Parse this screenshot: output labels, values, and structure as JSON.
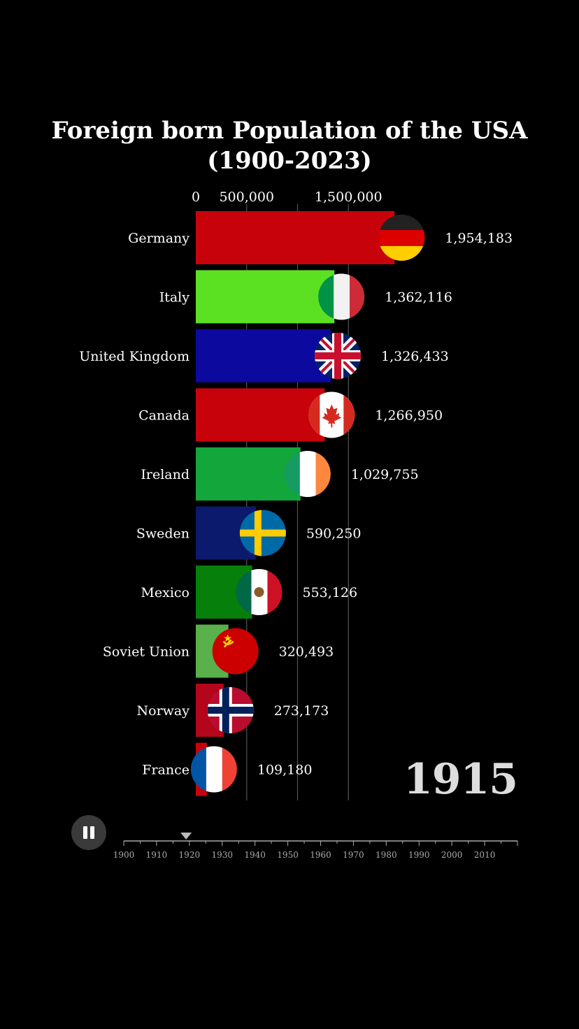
{
  "title_line1": "Foreign born Population of the USA",
  "title_line2": "(1900-2023)",
  "current_year": "1915",
  "controls": {
    "pause_icon": "pause-icon"
  },
  "timeline": {
    "labels": [
      "1900",
      "1910",
      "1920",
      "1930",
      "1940",
      "1950",
      "1960",
      "1970",
      "1980",
      "1990",
      "2000",
      "2010"
    ],
    "min_year": 1900,
    "max_year": 2020,
    "marker_year": 1919
  },
  "chart_data": {
    "type": "bar",
    "orientation": "horizontal",
    "title": "Foreign born Population of the USA (1900-2023)",
    "year": "1915",
    "x_ticks": [
      0,
      500000,
      1500000
    ],
    "x_tick_labels": [
      "0",
      "500,000",
      "1,500,000"
    ],
    "xlim": [
      0,
      2100000
    ],
    "categories": [
      "Germany",
      "Italy",
      "United Kingdom",
      "Canada",
      "Ireland",
      "Sweden",
      "Mexico",
      "Soviet Union",
      "Norway",
      "France"
    ],
    "values": [
      1954183,
      1362116,
      1326433,
      1266950,
      1029755,
      590250,
      553126,
      320493,
      273173,
      109180
    ],
    "value_labels": [
      "1,954,183",
      "1,362,116",
      "1,326,433",
      "1,266,950",
      "1,029,755",
      "590,250",
      "553,126",
      "320,493",
      "273,173",
      "109,180"
    ],
    "colors": [
      "#c8020b",
      "#5ce022",
      "#0c0a9e",
      "#c8020b",
      "#13a63a",
      "#0c1a6e",
      "#06800b",
      "#5ab04a",
      "#b3061a",
      "#c8020b"
    ],
    "flag_icons": [
      "germany-flag-icon",
      "italy-flag-icon",
      "united-kingdom-flag-icon",
      "canada-flag-icon",
      "ireland-flag-icon",
      "sweden-flag-icon",
      "mexico-flag-icon",
      "soviet-union-flag-icon",
      "norway-flag-icon",
      "france-flag-icon"
    ]
  }
}
